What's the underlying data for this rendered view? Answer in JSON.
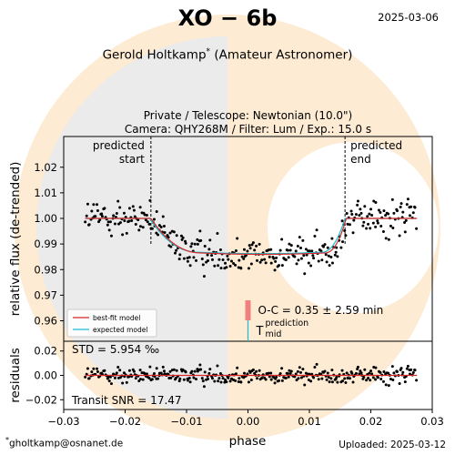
{
  "header": {
    "title": "XO − 6b",
    "date": "2025-03-06",
    "observer": "Gerold Holtkamp",
    "observer_mark": "*",
    "observer_role": "(Amateur Astronomer)",
    "setup_line1": "Private / Telescope: Newtonian (10.0\")",
    "setup_line2": "Camera: QHY268M / Filter: Lum / Exp.: 15.0 s"
  },
  "footer": {
    "email_mark": "*",
    "email": "gholtkamp@osnanet.de",
    "uploaded": "Uploaded: 2025-03-12"
  },
  "colors": {
    "best_fit": "#d62728",
    "expected": "#17becf",
    "points": "#000000",
    "oc_bar": "#f08080",
    "bg_orange": "#fdebd3",
    "bg_gray": "#ebebeb"
  },
  "chart_data": {
    "type": "scatter",
    "xlabel": "phase",
    "ylabel_main": "relative flux (de-trended)",
    "ylabel_resid": "residuals",
    "xlim": [
      -0.03,
      0.03
    ],
    "xticks": [
      "−0.03",
      "−0.02",
      "−0.01",
      "0.00",
      "0.01",
      "0.02",
      "0.03"
    ],
    "main": {
      "ylim": [
        0.952,
        1.032
      ],
      "yticks": [
        0.96,
        0.97,
        0.98,
        0.99,
        1.0,
        1.01,
        1.02
      ],
      "ytick_labels": [
        "0.96",
        "0.97",
        "0.98",
        "0.99",
        "1.00",
        "1.01",
        "1.02"
      ]
    },
    "residuals": {
      "ylim": [
        -0.028,
        0.028
      ],
      "yticks": [
        -0.02,
        0.0,
        0.02
      ],
      "ytick_labels": [
        "−0.02",
        "0.00",
        "0.02"
      ]
    },
    "annotations": {
      "predicted_start": {
        "label": [
          "predicted",
          "start"
        ],
        "x": -0.0158
      },
      "predicted_end": {
        "label": [
          "predicted",
          "end"
        ],
        "x": 0.0158
      },
      "oc_text": "O-C = 0.35 ± 2.59 min",
      "tmid": "T",
      "tmid_sup": "prediction",
      "tmid_sub": "mid",
      "std": "STD = 5.954 ‰",
      "snr": "Transit SNR = 17.47"
    },
    "legend": {
      "placement": "lower-left",
      "entries": [
        "best-fit model",
        "expected model"
      ]
    },
    "model": {
      "depth": 0.0135,
      "t1": -0.0158,
      "t2": -0.0075,
      "t3": 0.0125,
      "t4": 0.016,
      "expected_t1": -0.016,
      "expected_t4": 0.0158
    },
    "data_summary": {
      "phase_range": [
        -0.0265,
        0.0275
      ],
      "n_points": 330
    }
  }
}
